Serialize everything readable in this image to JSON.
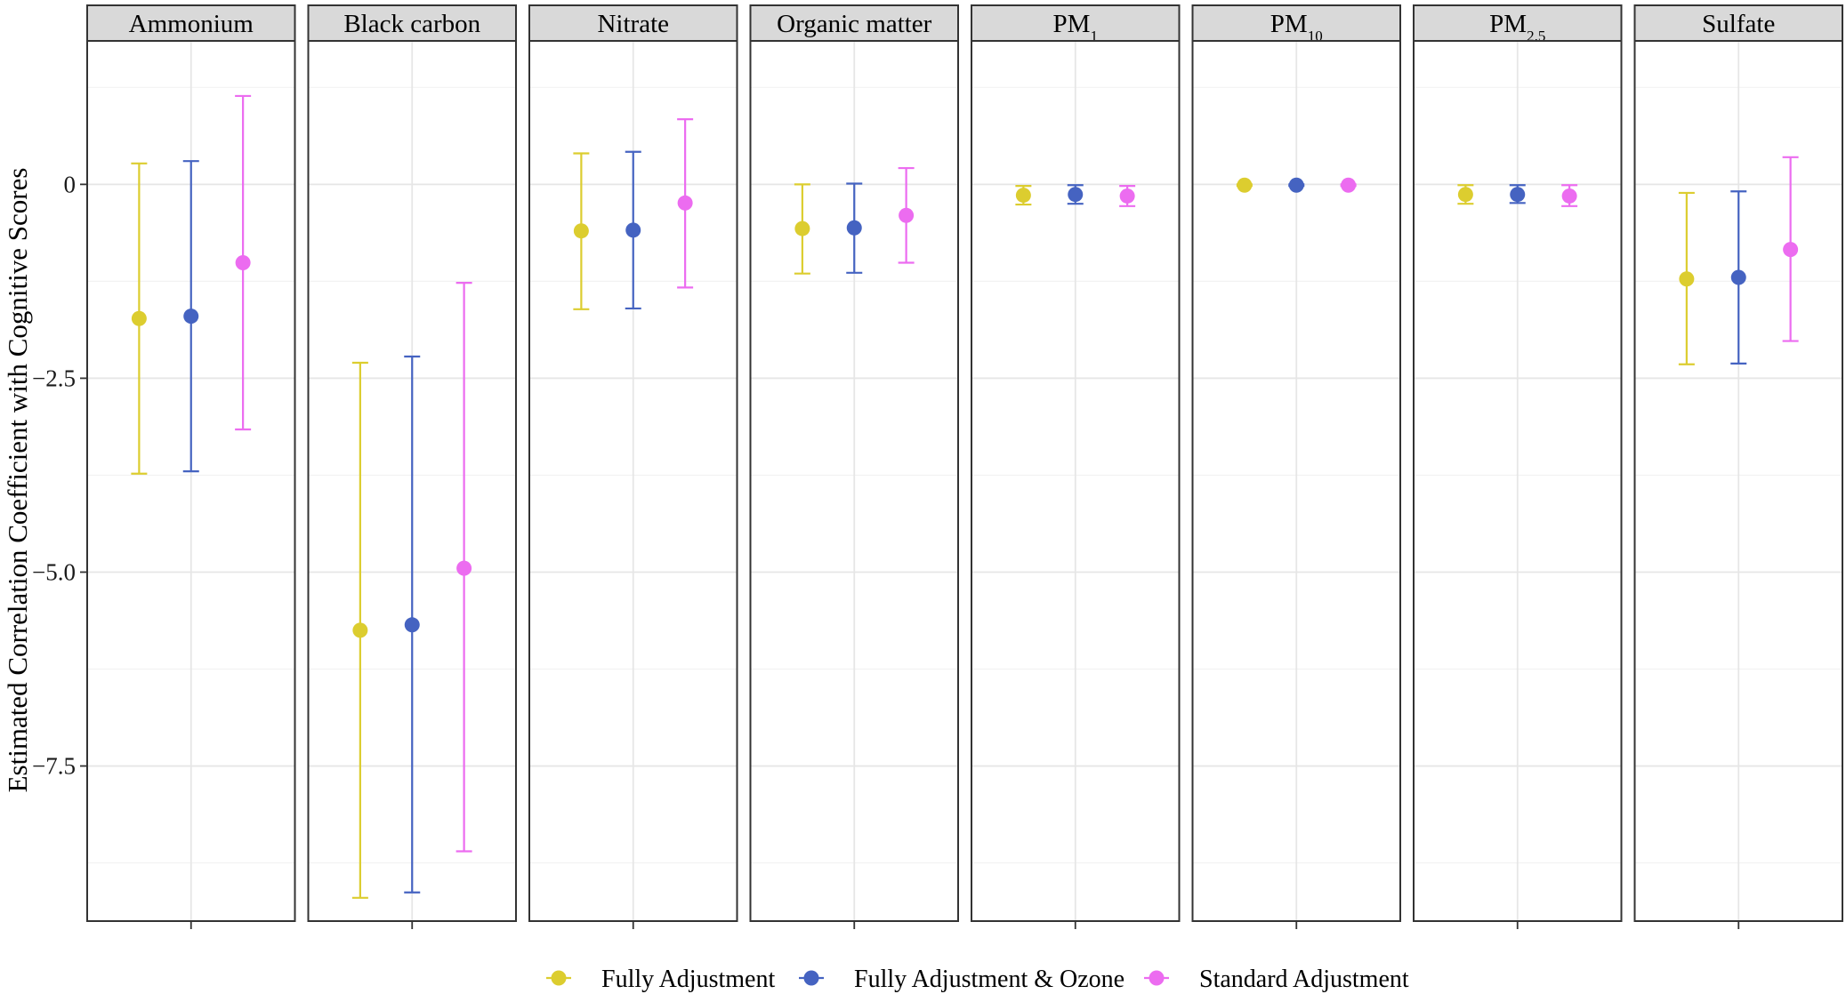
{
  "chart_data": {
    "type": "errorbar",
    "ylabel": "Estimated Correlation Coefficient with Cognitive Scores",
    "xlabel": "",
    "ylim": [
      -9.5,
      1.85
    ],
    "y_ticks": [
      0,
      -2.5,
      -5.0,
      -7.5
    ],
    "y_tick_labels": [
      "0",
      "−2.5",
      "−5.0",
      "−7.5"
    ],
    "legend_position": "bottom",
    "series": [
      {
        "name": "Fully Adjustment",
        "color": "#dccd2f"
      },
      {
        "name": "Fully Adjustment & Ozone",
        "color": "#4563c1"
      },
      {
        "name": "Standard Adjustment",
        "color": "#ec6cf0"
      }
    ],
    "panels": [
      {
        "label": "Ammonium",
        "label_sub": "",
        "estimates": [
          -1.73,
          -1.7,
          -1.01
        ],
        "lower": [
          -3.73,
          -3.7,
          -3.16
        ],
        "upper": [
          0.27,
          0.3,
          1.14
        ]
      },
      {
        "label": "Black carbon",
        "label_sub": "",
        "estimates": [
          -5.75,
          -5.68,
          -4.95
        ],
        "lower": [
          -9.2,
          -9.13,
          -8.6
        ],
        "upper": [
          -2.3,
          -2.22,
          -1.27
        ]
      },
      {
        "label": "Nitrate",
        "label_sub": "",
        "estimates": [
          -0.6,
          -0.59,
          -0.24
        ],
        "lower": [
          -1.61,
          -1.6,
          -1.33
        ],
        "upper": [
          0.4,
          0.42,
          0.84
        ]
      },
      {
        "label": "Organic matter",
        "label_sub": "",
        "estimates": [
          -0.57,
          -0.56,
          -0.4
        ],
        "lower": [
          -1.15,
          -1.14,
          -1.01
        ],
        "upper": [
          0.0,
          0.01,
          0.21
        ]
      },
      {
        "label": "PM",
        "label_sub": "1",
        "estimates": [
          -0.14,
          -0.13,
          -0.15
        ],
        "lower": [
          -0.26,
          -0.25,
          -0.28
        ],
        "upper": [
          -0.02,
          -0.01,
          -0.02
        ]
      },
      {
        "label": "PM",
        "label_sub": "10",
        "estimates": [
          -0.01,
          -0.01,
          -0.01
        ],
        "lower": [
          -0.02,
          -0.02,
          -0.02
        ],
        "upper": [
          0.0,
          0.0,
          0.0
        ]
      },
      {
        "label": "PM",
        "label_sub": "2.5",
        "estimates": [
          -0.13,
          -0.13,
          -0.15
        ],
        "lower": [
          -0.25,
          -0.24,
          -0.28
        ],
        "upper": [
          -0.01,
          -0.01,
          -0.01
        ]
      },
      {
        "label": "Sulfate",
        "label_sub": "",
        "estimates": [
          -1.22,
          -1.2,
          -0.84
        ],
        "lower": [
          -2.32,
          -2.31,
          -2.02
        ],
        "upper": [
          -0.11,
          -0.09,
          0.35
        ]
      }
    ]
  }
}
